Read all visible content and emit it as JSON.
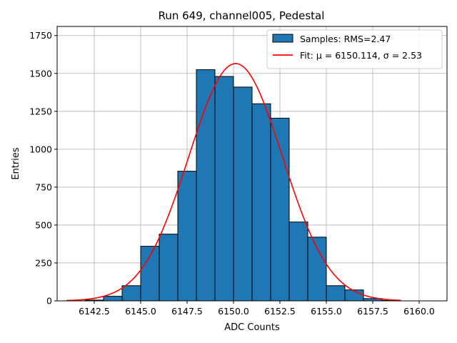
{
  "chart_data": {
    "type": "bar",
    "title": "Run 649, channel005, Pedestal",
    "xlabel": "ADC Counts",
    "ylabel": "Entries",
    "xlim": [
      6140.5,
      6161.5
    ],
    "ylim": [
      0,
      1810
    ],
    "grid": true,
    "legend_position": "top-right",
    "x_ticks": [
      6142.5,
      6145.0,
      6147.5,
      6150.0,
      6152.5,
      6155.0,
      6157.5,
      6160.0
    ],
    "x_tick_labels": [
      "6142.5",
      "6145.0",
      "6147.5",
      "6150.0",
      "6152.5",
      "6155.0",
      "6157.5",
      "6160.0"
    ],
    "y_ticks": [
      0,
      250,
      500,
      750,
      1000,
      1250,
      1500,
      1750
    ],
    "y_tick_labels": [
      "0",
      "250",
      "500",
      "750",
      "1000",
      "1250",
      "1500",
      "1750"
    ],
    "bin_width": 1,
    "bins": [
      {
        "left": 6142,
        "count": 5
      },
      {
        "left": 6143,
        "count": 30
      },
      {
        "left": 6144,
        "count": 100
      },
      {
        "left": 6145,
        "count": 360
      },
      {
        "left": 6146,
        "count": 440
      },
      {
        "left": 6147,
        "count": 855
      },
      {
        "left": 6148,
        "count": 1525
      },
      {
        "left": 6149,
        "count": 1480
      },
      {
        "left": 6150,
        "count": 1410
      },
      {
        "left": 6151,
        "count": 1300
      },
      {
        "left": 6152,
        "count": 1205
      },
      {
        "left": 6153,
        "count": 520
      },
      {
        "left": 6154,
        "count": 420
      },
      {
        "left": 6155,
        "count": 100
      },
      {
        "left": 6156,
        "count": 72
      },
      {
        "left": 6157,
        "count": 15
      },
      {
        "left": 6158,
        "count": 3
      }
    ],
    "series": [
      {
        "name": "Samples: RMS=2.47",
        "kind": "histogram",
        "color": "#1f77b4",
        "edge_color": "#000000"
      },
      {
        "name": "Fit: μ = 6150.114, σ = 2.53",
        "kind": "gaussian",
        "color": "#ff0000",
        "mu": 6150.114,
        "sigma": 2.53,
        "amplitude": 1565,
        "x_range": [
          6141.0,
          6159.0
        ]
      }
    ]
  }
}
